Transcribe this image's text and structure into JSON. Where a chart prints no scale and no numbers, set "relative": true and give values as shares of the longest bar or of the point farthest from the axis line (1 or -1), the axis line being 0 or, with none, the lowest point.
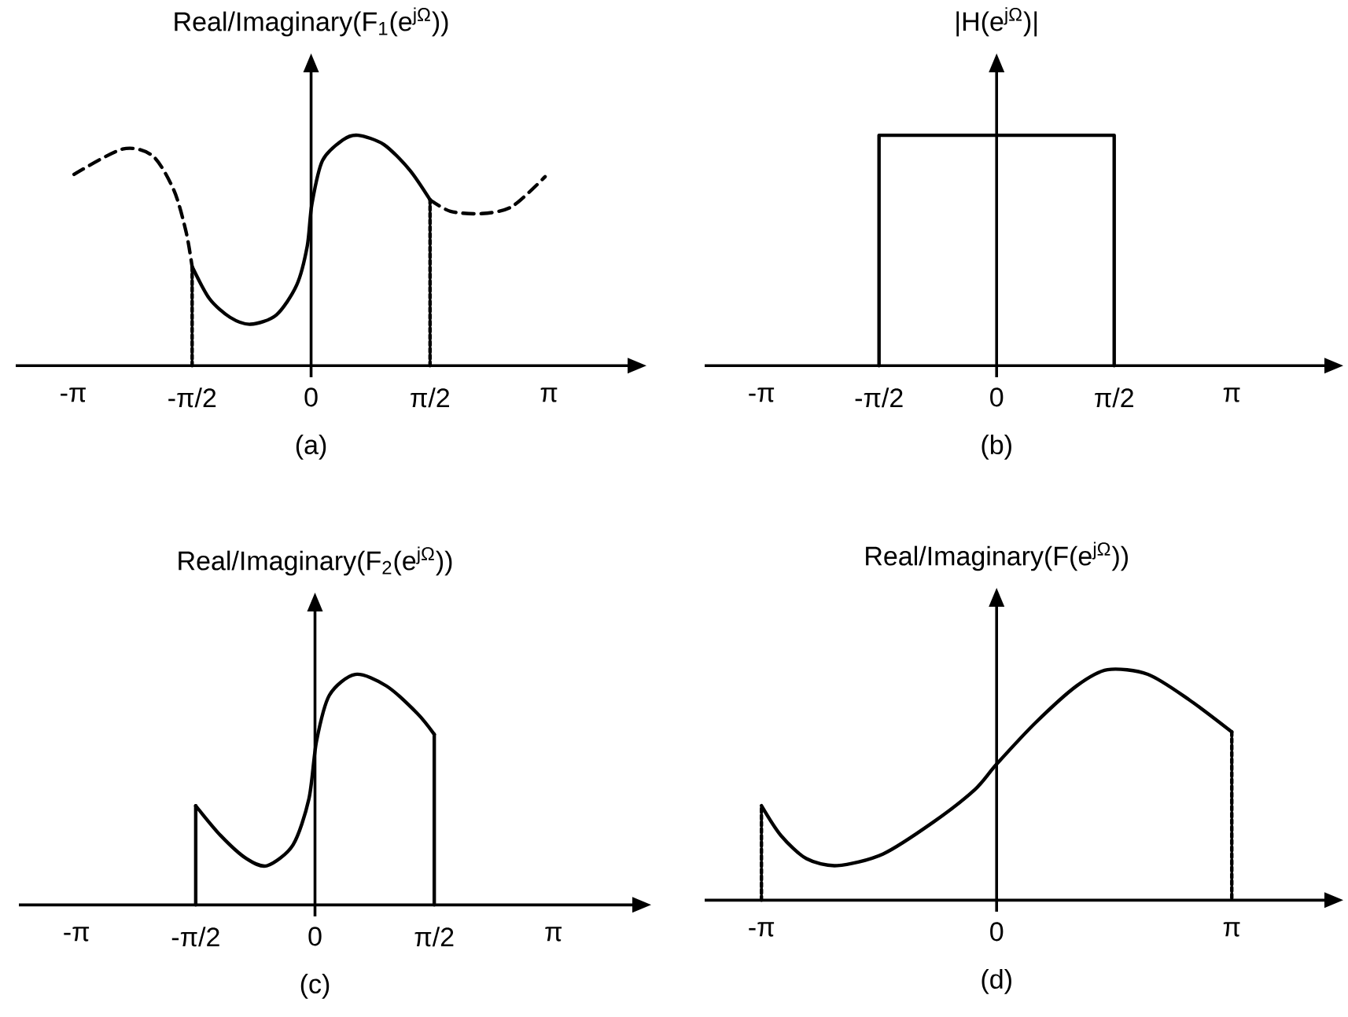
{
  "chart_data": [
    {
      "type": "line",
      "title": "Real/Imaginary(F$_{1}$(e$^{jΩ}$))",
      "annotations": [
        "(a)"
      ],
      "relative": true,
      "xlim": [
        -3.9,
        4.2
      ],
      "xticks": [
        {
          "value": -3.1416,
          "label": "-π"
        },
        {
          "value": -1.5708,
          "label": "-π/2"
        },
        {
          "value": 0,
          "label": "0"
        },
        {
          "value": 1.5708,
          "label": "π/2"
        },
        {
          "value": 3.1416,
          "label": "π"
        }
      ],
      "series": [
        {
          "color": "#000000",
          "line_style": "dashed",
          "x": [
            -3.13,
            -2.49,
            -2.09,
            -1.81,
            -1.65,
            -1.5708
          ],
          "values": [
            0.83,
            0.94,
            0.91,
            0.76,
            0.58,
            0.43
          ]
        },
        {
          "color": "#000000",
          "line_style": "solid",
          "x": [
            -1.5708,
            -1.34,
            -1.07,
            -0.8,
            -0.46,
            -0.19,
            -0.05,
            0.01,
            0.15,
            0.42,
            0.62,
            0.96,
            1.3,
            1.5708
          ],
          "values": [
            0.43,
            0.29,
            0.21,
            0.18,
            0.22,
            0.35,
            0.52,
            0.7,
            0.89,
            0.98,
            1.0,
            0.96,
            0.85,
            0.72
          ]
        },
        {
          "color": "#000000",
          "line_style": "dashed",
          "x": [
            1.5708,
            1.84,
            2.25,
            2.65,
            3.09
          ],
          "values": [
            0.72,
            0.67,
            0.66,
            0.69,
            0.82
          ]
        },
        {
          "color": "#000000",
          "line_style": "dotted",
          "x": [
            -1.5708,
            -1.5708
          ],
          "values": [
            0,
            0.43
          ]
        },
        {
          "color": "#000000",
          "line_style": "dotted",
          "x": [
            1.5708,
            1.5708
          ],
          "values": [
            0,
            0.72
          ]
        }
      ]
    },
    {
      "type": "line",
      "title": "|H(e$^{jΩ}$)|",
      "annotations": [
        "(b)"
      ],
      "relative": true,
      "xlim": [
        -3.9,
        4.4
      ],
      "xticks": [
        {
          "value": -3.1416,
          "label": "-π"
        },
        {
          "value": -1.5708,
          "label": "-π/2"
        },
        {
          "value": 0,
          "label": "0"
        },
        {
          "value": 1.5708,
          "label": "π/2"
        },
        {
          "value": 3.1416,
          "label": "π"
        }
      ],
      "series": [
        {
          "color": "#000000",
          "line_style": "solid",
          "x": [
            -1.5708,
            -1.5708,
            1.5708,
            1.5708
          ],
          "values": [
            0,
            1,
            1,
            0
          ]
        }
      ]
    },
    {
      "type": "line",
      "title": "Real/Imaginary(F$_{2}$(e$^{jΩ}$))",
      "annotations": [
        "(c)"
      ],
      "relative": true,
      "xlim": [
        -3.9,
        4.2
      ],
      "xticks": [
        {
          "value": -3.1416,
          "label": "-π"
        },
        {
          "value": -1.5708,
          "label": "-π/2"
        },
        {
          "value": 0,
          "label": "0"
        },
        {
          "value": 1.5708,
          "label": "π/2"
        },
        {
          "value": 3.1416,
          "label": "π"
        }
      ],
      "series": [
        {
          "color": "#000000",
          "line_style": "solid",
          "x": [
            -1.5708,
            -1.5708
          ],
          "values": [
            0,
            0.43
          ]
        },
        {
          "color": "#000000",
          "line_style": "solid",
          "x": [
            -1.5708,
            -1.24,
            -0.9,
            -0.63,
            -0.29,
            -0.08,
            0.02,
            0.19,
            0.53,
            0.94,
            1.35,
            1.5708
          ],
          "values": [
            0.43,
            0.3,
            0.2,
            0.17,
            0.26,
            0.46,
            0.71,
            0.91,
            1.0,
            0.95,
            0.83,
            0.74
          ]
        },
        {
          "color": "#000000",
          "line_style": "solid",
          "x": [
            1.5708,
            1.5708
          ],
          "values": [
            0.74,
            0
          ]
        }
      ]
    },
    {
      "type": "line",
      "title": "Real/Imaginary(F(e$^{jΩ}$))",
      "annotations": [
        "(d)"
      ],
      "relative": true,
      "xlim": [
        -3.9,
        4.4
      ],
      "xticks": [
        {
          "value": -3.1416,
          "label": "-π"
        },
        {
          "value": 0,
          "label": "0"
        },
        {
          "value": 3.1416,
          "label": "π"
        }
      ],
      "series": [
        {
          "color": "#000000",
          "line_style": "dotted",
          "x": [
            -3.1416,
            -3.1416
          ],
          "values": [
            0,
            0.41
          ]
        },
        {
          "color": "#000000",
          "line_style": "solid",
          "x": [
            -3.1416,
            -2.88,
            -2.54,
            -2.13,
            -1.52,
            -0.84,
            -0.29,
            0,
            0.52,
            1.07,
            1.48,
            2.02,
            2.57,
            3.1416
          ],
          "values": [
            0.41,
            0.28,
            0.18,
            0.15,
            0.2,
            0.34,
            0.48,
            0.59,
            0.77,
            0.93,
            1.0,
            0.98,
            0.87,
            0.73
          ]
        },
        {
          "color": "#000000",
          "line_style": "dotted",
          "x": [
            3.1416,
            3.1416
          ],
          "values": [
            0.73,
            0
          ]
        }
      ]
    }
  ]
}
